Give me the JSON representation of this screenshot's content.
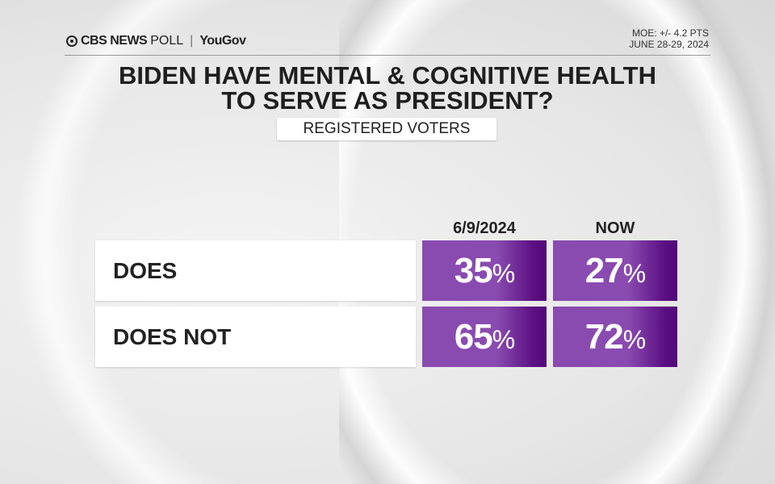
{
  "header": {
    "brand": "CBS NEWS",
    "poll": "POLL",
    "partner": "YouGov",
    "moe": "MOE: +/- 4.2 PTS",
    "dates": "JUNE 28-29, 2024"
  },
  "title_line1": "BIDEN HAVE MENTAL & COGNITIVE HEALTH",
  "title_line2": "TO SERVE AS PRESIDENT?",
  "subtitle": "REGISTERED VOTERS",
  "chart_data": {
    "type": "table",
    "title": "BIDEN HAVE MENTAL & COGNITIVE HEALTH TO SERVE AS PRESIDENT?",
    "subtitle": "REGISTERED VOTERS",
    "columns": [
      "6/9/2024",
      "NOW"
    ],
    "rows": [
      {
        "label": "DOES",
        "values": [
          "35",
          "27"
        ]
      },
      {
        "label": "DOES NOT",
        "values": [
          "65",
          "72"
        ]
      }
    ],
    "unit": "%",
    "accent": "#8a4bb0"
  }
}
